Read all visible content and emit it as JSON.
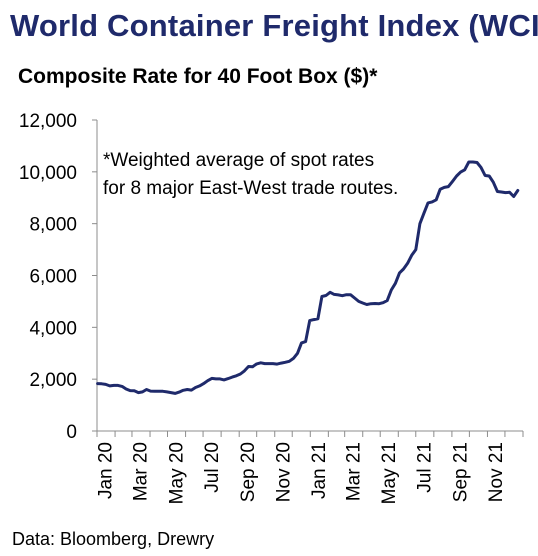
{
  "title": "World Container Freight Index (WCI)",
  "subtitle": "Composite Rate for 40 Foot Box ($)*",
  "source": "Data: Bloomberg, Drewry",
  "chart_data": {
    "type": "line",
    "title": "World Container Freight Index (WCI)",
    "subtitle": "Composite Rate for 40 Foot Box ($)*",
    "xlabel": "",
    "ylabel": "",
    "ylim": [
      0,
      12000
    ],
    "yticks": [
      0,
      2000,
      4000,
      6000,
      8000,
      10000,
      12000
    ],
    "ytick_labels": [
      "0",
      "2,000",
      "4,000",
      "6,000",
      "8,000",
      "10,000",
      "12,000"
    ],
    "xticks": [
      "2020-01",
      "2020-03",
      "2020-05",
      "2020-07",
      "2020-09",
      "2020-11",
      "2021-01",
      "2021-03",
      "2021-05",
      "2021-07",
      "2021-09",
      "2021-11"
    ],
    "xtick_labels": [
      "Jan 20",
      "Mar 20",
      "May 20",
      "Jul 20",
      "Sep 20",
      "Nov 20",
      "Jan 21",
      "Mar 21",
      "May 21",
      "Jul 21",
      "Sep 21",
      "Nov 21"
    ],
    "xlim": [
      "2020-01-01",
      "2021-12-31"
    ],
    "grid": false,
    "annotation": [
      "*Weighted average of spot rates",
      "for 8 major East-West trade routes."
    ],
    "series": [
      {
        "color": "#1f2a6b",
        "points": [
          [
            "2020-01-02",
            1830
          ],
          [
            "2020-01-09",
            1820
          ],
          [
            "2020-01-16",
            1800
          ],
          [
            "2020-01-23",
            1740
          ],
          [
            "2020-01-30",
            1760
          ],
          [
            "2020-02-06",
            1760
          ],
          [
            "2020-02-13",
            1720
          ],
          [
            "2020-02-20",
            1620
          ],
          [
            "2020-02-27",
            1560
          ],
          [
            "2020-03-05",
            1550
          ],
          [
            "2020-03-12",
            1480
          ],
          [
            "2020-03-19",
            1510
          ],
          [
            "2020-03-26",
            1600
          ],
          [
            "2020-04-02",
            1540
          ],
          [
            "2020-04-09",
            1530
          ],
          [
            "2020-04-16",
            1530
          ],
          [
            "2020-04-23",
            1530
          ],
          [
            "2020-04-30",
            1510
          ],
          [
            "2020-05-07",
            1480
          ],
          [
            "2020-05-14",
            1450
          ],
          [
            "2020-05-21",
            1500
          ],
          [
            "2020-05-28",
            1570
          ],
          [
            "2020-06-04",
            1600
          ],
          [
            "2020-06-11",
            1580
          ],
          [
            "2020-06-18",
            1680
          ],
          [
            "2020-06-25",
            1740
          ],
          [
            "2020-07-02",
            1830
          ],
          [
            "2020-07-09",
            1940
          ],
          [
            "2020-07-16",
            2030
          ],
          [
            "2020-07-23",
            2010
          ],
          [
            "2020-07-30",
            2010
          ],
          [
            "2020-08-06",
            1970
          ],
          [
            "2020-08-13",
            2020
          ],
          [
            "2020-08-20",
            2080
          ],
          [
            "2020-08-27",
            2130
          ],
          [
            "2020-09-03",
            2200
          ],
          [
            "2020-09-10",
            2320
          ],
          [
            "2020-09-17",
            2490
          ],
          [
            "2020-09-24",
            2480
          ],
          [
            "2020-10-01",
            2590
          ],
          [
            "2020-10-08",
            2630
          ],
          [
            "2020-10-15",
            2600
          ],
          [
            "2020-10-22",
            2600
          ],
          [
            "2020-10-29",
            2600
          ],
          [
            "2020-11-05",
            2580
          ],
          [
            "2020-11-12",
            2620
          ],
          [
            "2020-11-19",
            2650
          ],
          [
            "2020-11-26",
            2690
          ],
          [
            "2020-12-03",
            2800
          ],
          [
            "2020-12-10",
            3000
          ],
          [
            "2020-12-17",
            3400
          ],
          [
            "2020-12-24",
            3450
          ],
          [
            "2020-12-31",
            4260
          ],
          [
            "2021-01-07",
            4300
          ],
          [
            "2021-01-14",
            4330
          ],
          [
            "2021-01-21",
            5190
          ],
          [
            "2021-01-28",
            5230
          ],
          [
            "2021-02-04",
            5350
          ],
          [
            "2021-02-11",
            5270
          ],
          [
            "2021-02-18",
            5250
          ],
          [
            "2021-02-25",
            5220
          ],
          [
            "2021-03-04",
            5260
          ],
          [
            "2021-03-11",
            5260
          ],
          [
            "2021-03-18",
            5130
          ],
          [
            "2021-03-25",
            5000
          ],
          [
            "2021-04-01",
            4940
          ],
          [
            "2021-04-08",
            4880
          ],
          [
            "2021-04-15",
            4910
          ],
          [
            "2021-04-22",
            4920
          ],
          [
            "2021-04-29",
            4910
          ],
          [
            "2021-05-06",
            4950
          ],
          [
            "2021-05-13",
            5030
          ],
          [
            "2021-05-20",
            5440
          ],
          [
            "2021-05-27",
            5700
          ],
          [
            "2021-06-03",
            6100
          ],
          [
            "2021-06-10",
            6250
          ],
          [
            "2021-06-17",
            6470
          ],
          [
            "2021-06-24",
            6780
          ],
          [
            "2021-07-01",
            7000
          ],
          [
            "2021-07-08",
            8000
          ],
          [
            "2021-07-15",
            8400
          ],
          [
            "2021-07-22",
            8800
          ],
          [
            "2021-07-29",
            8840
          ],
          [
            "2021-08-05",
            8920
          ],
          [
            "2021-08-12",
            9330
          ],
          [
            "2021-08-19",
            9400
          ],
          [
            "2021-08-26",
            9430
          ],
          [
            "2021-09-02",
            9630
          ],
          [
            "2021-09-09",
            9840
          ],
          [
            "2021-09-16",
            9990
          ],
          [
            "2021-09-23",
            10080
          ],
          [
            "2021-09-30",
            10380
          ],
          [
            "2021-10-07",
            10380
          ],
          [
            "2021-10-14",
            10360
          ],
          [
            "2021-10-21",
            10170
          ],
          [
            "2021-10-28",
            9860
          ],
          [
            "2021-11-04",
            9840
          ],
          [
            "2021-11-11",
            9600
          ],
          [
            "2021-11-18",
            9240
          ],
          [
            "2021-11-25",
            9220
          ],
          [
            "2021-12-02",
            9200
          ],
          [
            "2021-12-09",
            9210
          ],
          [
            "2021-12-16",
            9050
          ],
          [
            "2021-12-23",
            9280
          ]
        ]
      }
    ]
  }
}
